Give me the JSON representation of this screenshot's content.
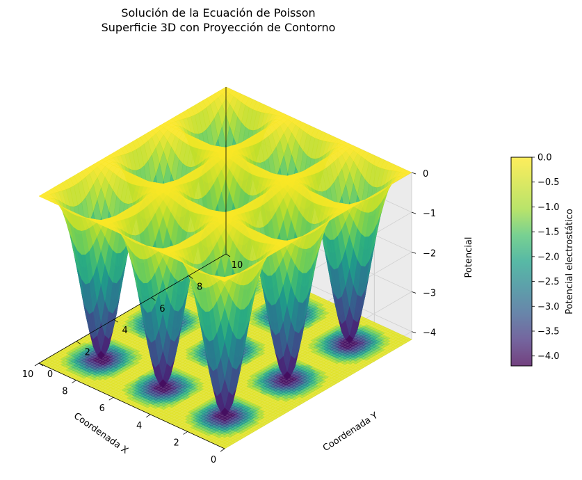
{
  "chart_data": {
    "type": "surface3d",
    "title": "Solución de la Ecuación de Poisson",
    "subtitle": "Superficie 3D con Proyección de Contorno",
    "xlabel": "Coordenada X",
    "ylabel": "Coordenada Y",
    "zlabel": "Potencial",
    "xlim": [
      0,
      10
    ],
    "ylim": [
      0,
      10
    ],
    "zlim": [
      -4.2,
      0
    ],
    "x_ticks": [
      "0",
      "2",
      "4",
      "6",
      "8",
      "10"
    ],
    "y_ticks": [
      "0",
      "2",
      "4",
      "6",
      "8",
      "10"
    ],
    "z_ticks": [
      "0",
      "−1",
      "−2",
      "−3",
      "−4"
    ],
    "colormap": "viridis",
    "colorbar": {
      "label": "Potencial electrostático",
      "range": [
        -4.2,
        0
      ],
      "ticks": [
        "0.0",
        "−0.5",
        "−1.0",
        "−1.5",
        "−2.0",
        "−2.5",
        "−3.0",
        "−3.5",
        "−4.0"
      ]
    },
    "surface": {
      "description_function": "potential wells arranged on a 3x3 grid",
      "well_centers_x": [
        1.67,
        5.0,
        8.33
      ],
      "well_centers_y": [
        1.67,
        5.0,
        8.33
      ],
      "min_value": -4.2,
      "max_value": 0
    },
    "contour_projection": {
      "on": true,
      "position": "floor"
    },
    "grid": true,
    "view": {
      "elev": 30,
      "azim": -135
    }
  }
}
